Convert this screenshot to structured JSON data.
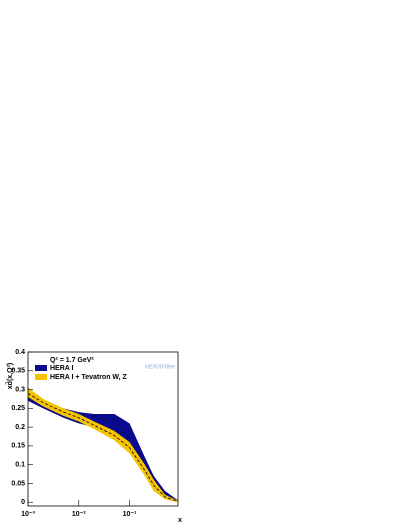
{
  "chart_data": {
    "type": "band",
    "annotation": "Q² = 1.7 GeV²",
    "logo": "HERAFitter",
    "xlabel": "x",
    "ylabel": "xd̄(x,Q²)",
    "x": [
      0.001,
      0.002,
      0.005,
      0.01,
      0.02,
      0.05,
      0.1,
      0.2,
      0.3,
      0.5,
      0.9
    ],
    "series": [
      {
        "name": "HERA I",
        "color": "#0a0a8c",
        "lower": [
          0.27,
          0.25,
          0.225,
          0.21,
          0.2,
          0.17,
          0.14,
          0.08,
          0.04,
          0.012,
          0.0
        ],
        "upper": [
          0.29,
          0.27,
          0.25,
          0.24,
          0.235,
          0.235,
          0.21,
          0.12,
          0.07,
          0.03,
          0.005
        ]
      },
      {
        "name": "HERA I + Tevatron W, Z",
        "color": "#f5c400",
        "lower": [
          0.28,
          0.255,
          0.23,
          0.215,
          0.195,
          0.165,
          0.13,
          0.07,
          0.03,
          0.008,
          0.0
        ],
        "upper": [
          0.305,
          0.275,
          0.25,
          0.235,
          0.215,
          0.19,
          0.16,
          0.1,
          0.06,
          0.02,
          0.004
        ]
      }
    ],
    "central": {
      "color": "#000000",
      "values": [
        0.29,
        0.265,
        0.24,
        0.225,
        0.205,
        0.178,
        0.145,
        0.085,
        0.045,
        0.014,
        0.002
      ]
    },
    "xlim": [
      0.001,
      0.9
    ],
    "log_x": true,
    "xticks": [
      {
        "value": 0.001,
        "label": "10⁻³"
      },
      {
        "value": 0.01,
        "label": "10⁻²"
      },
      {
        "value": 0.1,
        "label": "10⁻¹"
      }
    ],
    "ylim": [
      -0.01,
      0.4
    ],
    "yticks": [
      0,
      0.05,
      0.1,
      0.15,
      0.2,
      0.25,
      0.3,
      0.35,
      0.4
    ]
  }
}
